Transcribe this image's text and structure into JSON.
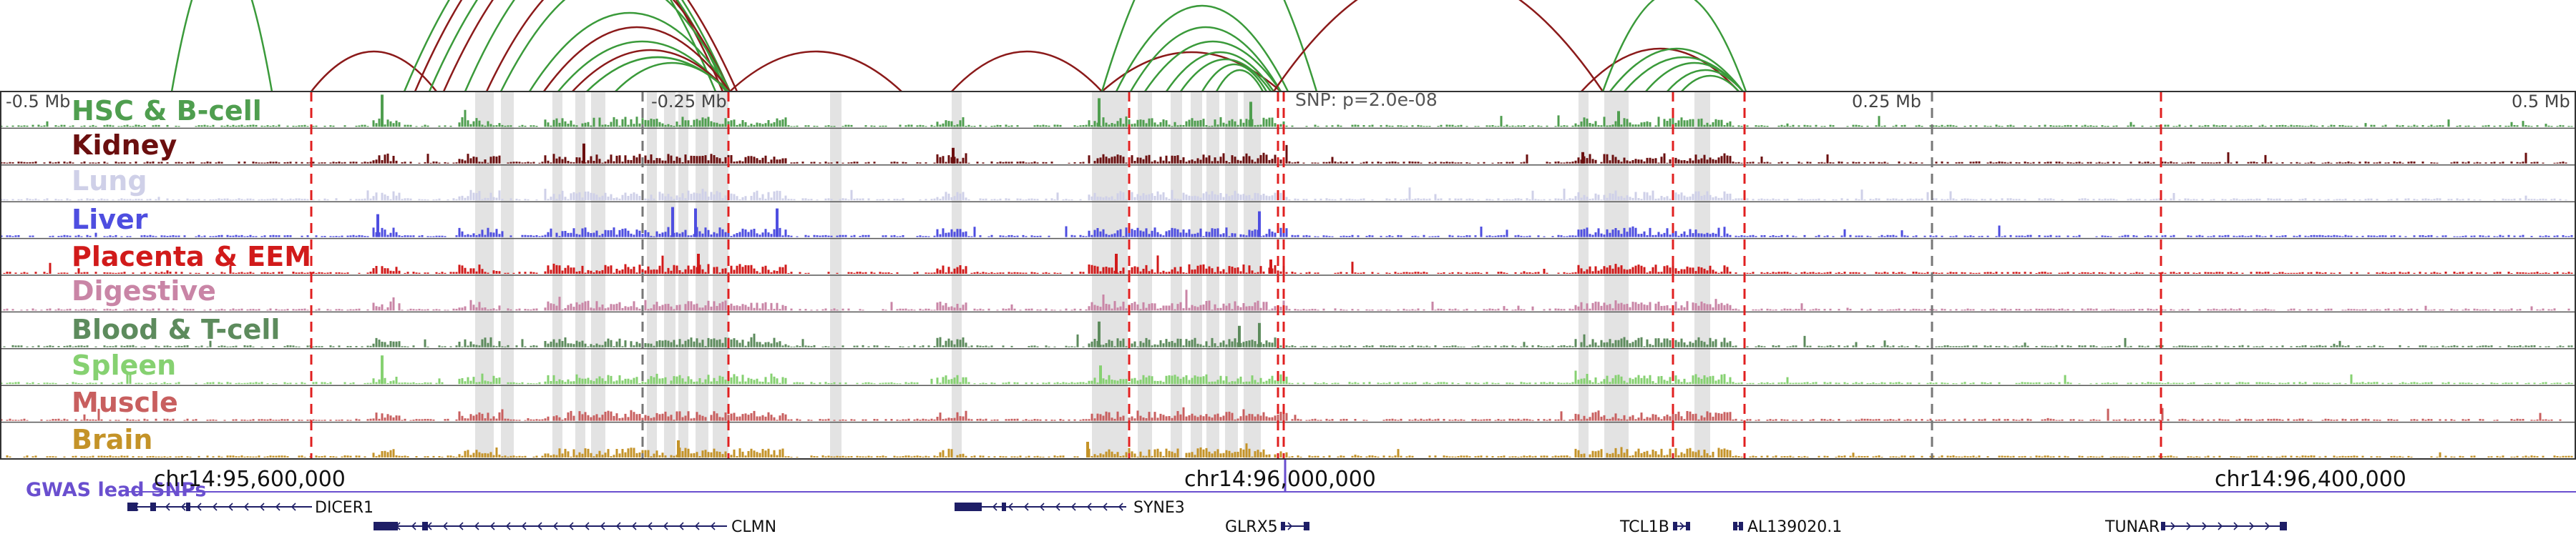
{
  "distance_labels": [
    "-0.5 Mb",
    "-0.25 Mb",
    "0.25 Mb",
    "0.5 Mb"
  ],
  "snp_label": "SNP: p=2.0e-08",
  "tracks": [
    {
      "label": "HSC & B-cell",
      "color": "#4f9e4f"
    },
    {
      "label": "Kidney",
      "color": "#6b0f0f"
    },
    {
      "label": "Lung",
      "color": "#cfd0e8"
    },
    {
      "label": "Liver",
      "color": "#4e4ee0"
    },
    {
      "label": "Placenta & EEM",
      "color": "#d11a1a"
    },
    {
      "label": "Digestive",
      "color": "#c985a6"
    },
    {
      "label": "Blood & T-cell",
      "color": "#5d8b5d"
    },
    {
      "label": "Spleen",
      "color": "#86d171"
    },
    {
      "label": "Muscle",
      "color": "#c85f5f"
    },
    {
      "label": "Brain",
      "color": "#c49328"
    }
  ],
  "gwas_label": "GWAS lead SNPs",
  "gwas_color": "#6a4fcf",
  "coordinates": [
    "chr14:95,600,000",
    "chr14:96,000,000",
    "chr14:96,400,000"
  ],
  "genes": [
    {
      "name": "DICER1",
      "strand": "-"
    },
    {
      "name": "CLMN",
      "strand": "-"
    },
    {
      "name": "SYNE3",
      "strand": "-"
    },
    {
      "name": "GLRX5",
      "strand": "+"
    },
    {
      "name": "TCL1B",
      "strand": "+"
    },
    {
      "name": "AL139020.1",
      "strand": "+"
    },
    {
      "name": "TUNAR",
      "strand": "+"
    }
  ],
  "colors": {
    "highlight": "#e3e3e3",
    "dashed_marker": "#e02020",
    "gene_fill": "#1e1e66",
    "loop_red": "#8b1a1a",
    "loop_green": "#3a9a3a"
  }
}
